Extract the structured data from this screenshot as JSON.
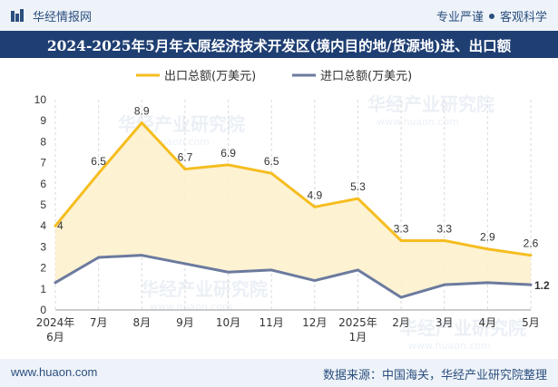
{
  "header": {
    "brand": "华经情报网",
    "tag1": "专业严谨",
    "tag2": "客观科学"
  },
  "watermark": "华经产业研究院",
  "watermark_url": "www.huaon.com",
  "chart_data": {
    "type": "area",
    "title": "2024-2025年5月年太原经济技术开发区(境内目的地/货源地)进、出口额",
    "xlabel": "",
    "ylabel": "",
    "ylim": [
      0,
      10
    ],
    "y_ticks": [
      "0",
      "1",
      "2",
      "3",
      "4",
      "5",
      "6",
      "7",
      "8",
      "9",
      "10"
    ],
    "categories": [
      "2024年6月",
      "7月",
      "8月",
      "9月",
      "10月",
      "11月",
      "12月",
      "2025年1月",
      "2月",
      "3月",
      "4月",
      "5月"
    ],
    "grid": "vertical",
    "legend_position": "top-center",
    "colors": {
      "export": "#f5bd1f",
      "import": "#6b7a9e",
      "fill": "#fdf1cd"
    },
    "series": [
      {
        "name": "出口总额(万美元)",
        "values": [
          4,
          6.5,
          8.9,
          6.7,
          6.9,
          6.5,
          4.9,
          5.3,
          3.3,
          3.3,
          2.9,
          2.6
        ],
        "labels": [
          "4",
          "6.5",
          "8.9",
          "6.7",
          "6.9",
          "6.5",
          "4.9",
          "5.3",
          "3.3",
          "3.3",
          "2.9",
          "2.6"
        ]
      },
      {
        "name": "进口总额(万美元)",
        "values": [
          1.3,
          2.5,
          2.6,
          2.2,
          1.8,
          1.9,
          1.4,
          1.9,
          0.6,
          1.2,
          1.3,
          1.2
        ],
        "labels": [
          "",
          "",
          "",
          "",
          "",
          "",
          "",
          "",
          "",
          "",
          "",
          "1.2"
        ]
      }
    ]
  },
  "footer": {
    "site": "www.huaon.com",
    "source": "数据来源：中国海关，华经产业研究院整理"
  }
}
